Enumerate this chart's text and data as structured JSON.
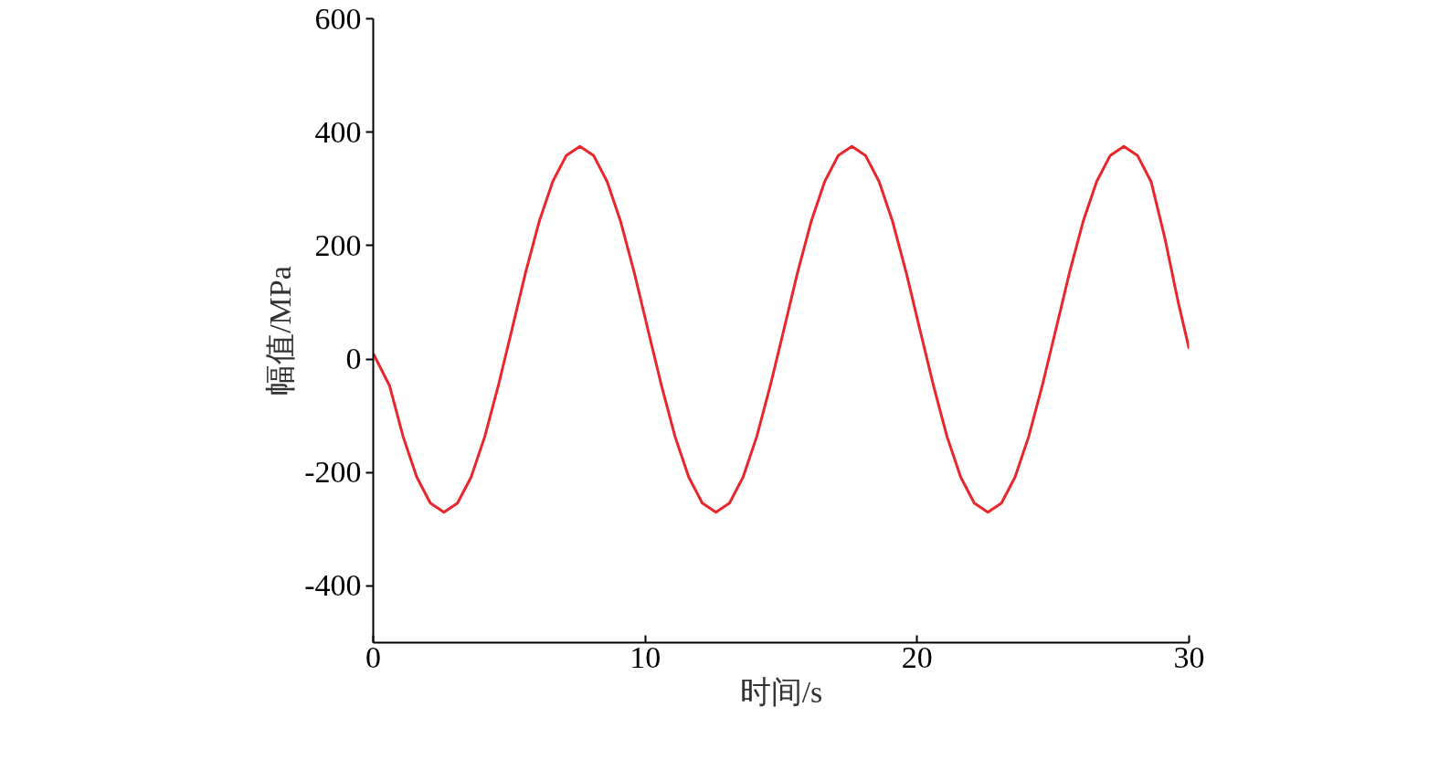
{
  "chart_data": {
    "type": "line",
    "xlabel": "时间/s",
    "ylabel": "幅值/MPa",
    "x": [
      0,
      0.6,
      1.1,
      1.6,
      2.1,
      2.6,
      3.1,
      3.6,
      4.1,
      4.6,
      5.1,
      5.6,
      6.1,
      6.6,
      7.1,
      7.6,
      8.1,
      8.6,
      9.1,
      9.6,
      10.1,
      10.6,
      11.1,
      11.6,
      12.1,
      12.6,
      13.1,
      13.6,
      14.1,
      14.6,
      15.1,
      15.6,
      16.1,
      16.6,
      17.1,
      17.6,
      18.1,
      18.6,
      19.1,
      19.6,
      20.1,
      20.6,
      21.1,
      21.6,
      22.1,
      22.6,
      23.1,
      23.6,
      24.1,
      24.6,
      25.1,
      25.6,
      26.1,
      26.6,
      27.1,
      27.6,
      28.1,
      28.6,
      29.1,
      29.6,
      30
    ],
    "series": [
      {
        "color": "#e8262c",
        "values": [
          10,
          -47,
          -137,
          -208,
          -254,
          -270,
          -254,
          -208,
          -137,
          -47,
          52,
          152,
          242,
          313,
          359,
          375,
          359,
          313,
          242,
          152,
          52,
          -47,
          -137,
          -208,
          -254,
          -270,
          -254,
          -208,
          -137,
          -47,
          52,
          152,
          242,
          313,
          359,
          375,
          359,
          313,
          242,
          152,
          52,
          -47,
          -137,
          -208,
          -254,
          -270,
          -254,
          -208,
          -137,
          -47,
          52,
          152,
          242,
          313,
          359,
          375,
          359,
          313,
          215,
          100,
          18
        ]
      }
    ],
    "xlim": [
      0,
      30
    ],
    "ylim": [
      -500,
      600
    ],
    "xticks": [
      0,
      10,
      20,
      30
    ],
    "yticks": [
      -400,
      -200,
      0,
      200,
      400,
      600
    ],
    "grid": false,
    "marker": "none",
    "line_style": "solid"
  }
}
